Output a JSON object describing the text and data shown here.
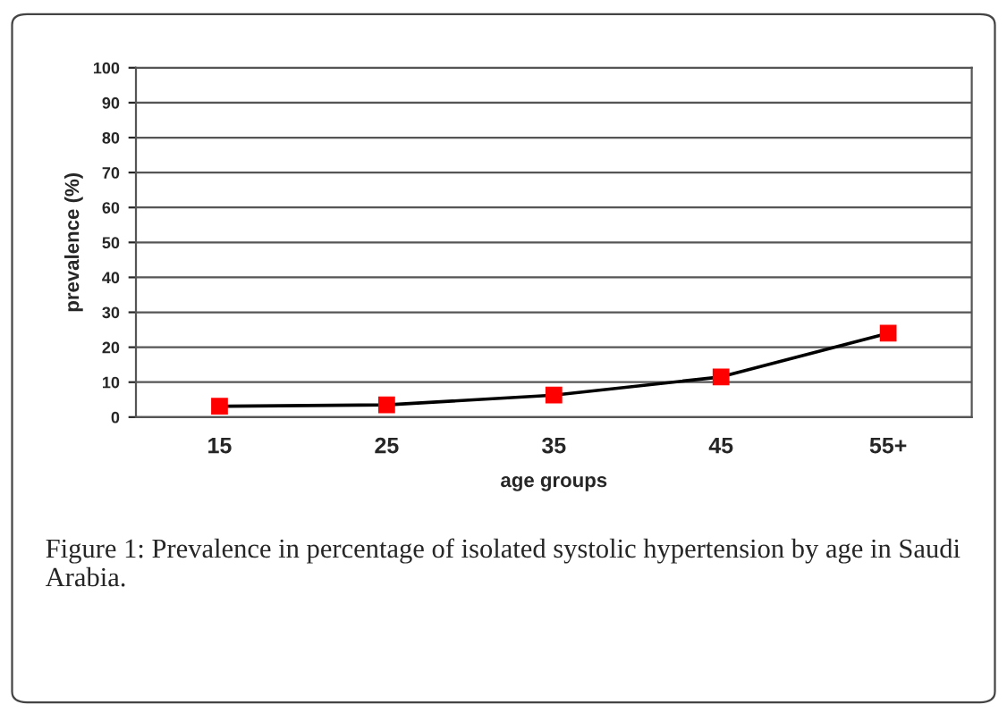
{
  "chart_data": {
    "type": "line",
    "xlabel": "age groups",
    "ylabel": "prevalence (%)",
    "categories": [
      "15",
      "25",
      "35",
      "45",
      "55+"
    ],
    "series": [
      {
        "color": "#ff0000",
        "values": [
          3.1,
          3.5,
          6.3,
          11.5,
          24
        ]
      }
    ],
    "ylim": [
      0,
      100
    ],
    "yticks": [
      0,
      10,
      20,
      30,
      40,
      50,
      60,
      70,
      80,
      90,
      100
    ],
    "grid": "y",
    "marker": "square",
    "line_style": "solid",
    "legend": false,
    "annotations": [
      "Figure 1: Prevalence in percentage of isolated systolic hypertension by age in Saudi Arabia."
    ]
  }
}
